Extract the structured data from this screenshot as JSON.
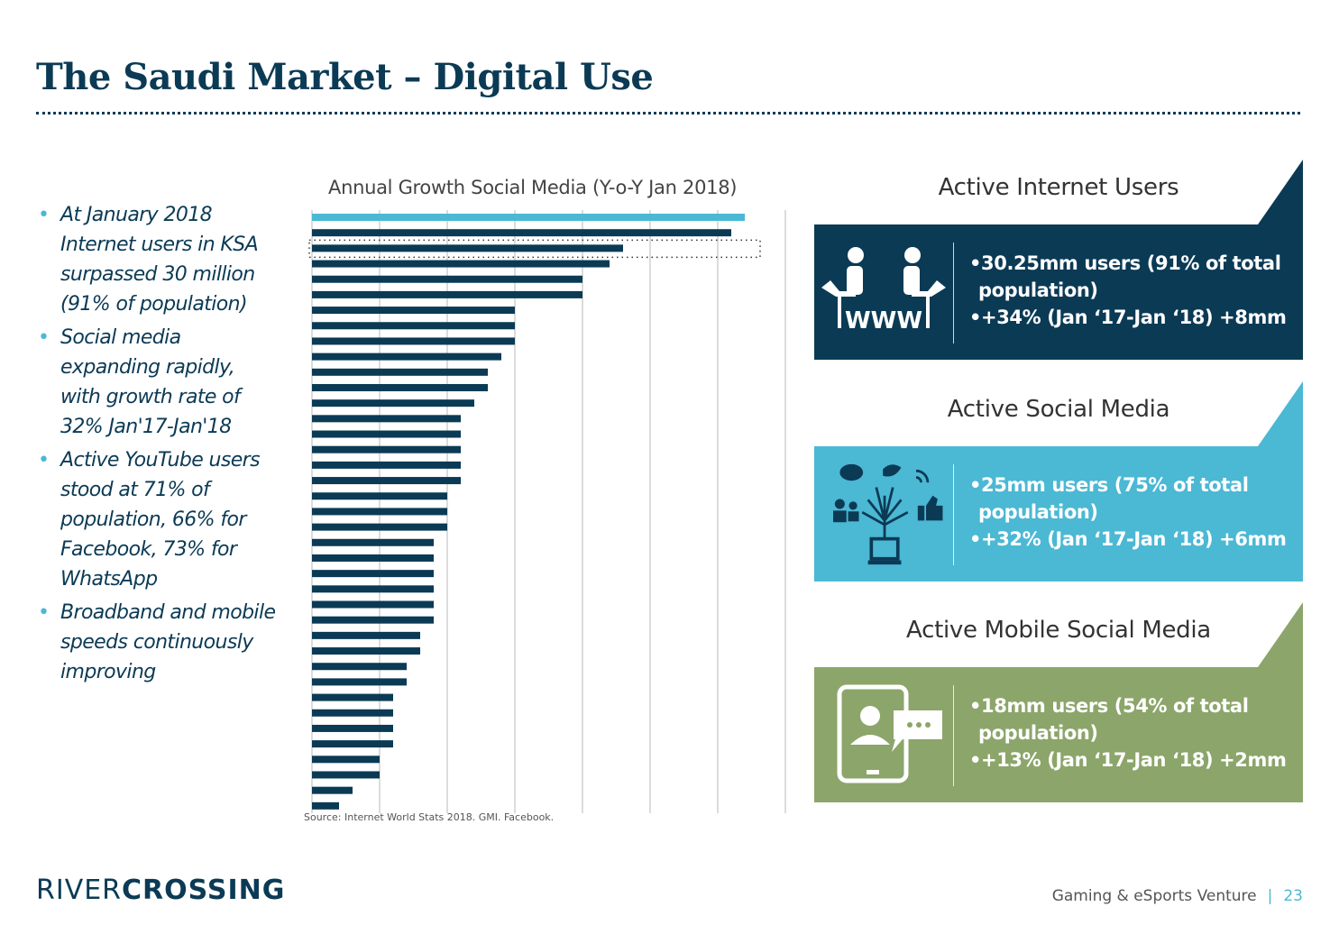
{
  "title": "The Saudi Market – Digital Use",
  "bullets": [
    "At January 2018 Internet users in KSA surpassed 30 million (91% of population)",
    "Social media expanding rapidly, with growth rate of 32% Jan'17-Jan'18",
    "Active YouTube users stood at 71% of population, 66% for Facebook, 73% for WhatsApp",
    "Broadband and mobile speeds continuously improving"
  ],
  "chart_data": {
    "type": "bar",
    "orientation": "horizontal",
    "title": "Annual Growth Social Media (Y-o-Y Jan 2018)",
    "xlabel": "",
    "ylabel": "",
    "grid": true,
    "xlim": [
      0,
      7
    ],
    "highlight_index": 0,
    "highlight_box_index": 2,
    "values": [
      6.4,
      6.2,
      4.6,
      4.4,
      4,
      4,
      3,
      3,
      3,
      2.8,
      2.6,
      2.6,
      2.4,
      2.2,
      2.2,
      2.2,
      2.2,
      2.2,
      2,
      2,
      2,
      1.8,
      1.8,
      1.8,
      1.8,
      1.8,
      1.8,
      1.6,
      1.6,
      1.4,
      1.4,
      1.2,
      1.2,
      1.2,
      1.2,
      1,
      1,
      0.6,
      0.4
    ],
    "colors": {
      "highlight": "#4bb8d4",
      "bar": "#0b3a55",
      "grid": "#d0d0d0"
    }
  },
  "source": "Source: Internet World Stats 2018. GMI. Facebook.",
  "cards": [
    {
      "title": "Active Internet Users",
      "color": "#0b3a55",
      "icon": "people-www-icon",
      "icon_text": "WWW",
      "line1": "•30.25mm users (91% of total",
      "line2": "population)",
      "line3": "•+34% (Jan ‘17-Jan ‘18) +8mm"
    },
    {
      "title": "Active Social Media",
      "color": "#4bb8d4",
      "icon": "social-network-icon",
      "line1": "•25mm users (75% of total",
      "line2": "population)",
      "line3": "•+32% (Jan ‘17-Jan ‘18) +6mm"
    },
    {
      "title": "Active Mobile Social Media",
      "color": "#8ca56a",
      "icon": "mobile-chat-icon",
      "line1": "•18mm users (54% of total",
      "line2": "population)",
      "line3": "•+13% (Jan ‘17-Jan ‘18) +2mm"
    }
  ],
  "logo": {
    "part1": "RIVER",
    "part2": "CROSSING"
  },
  "footer": {
    "text": "Gaming & eSports Venture",
    "separator": "|",
    "page": "23"
  }
}
